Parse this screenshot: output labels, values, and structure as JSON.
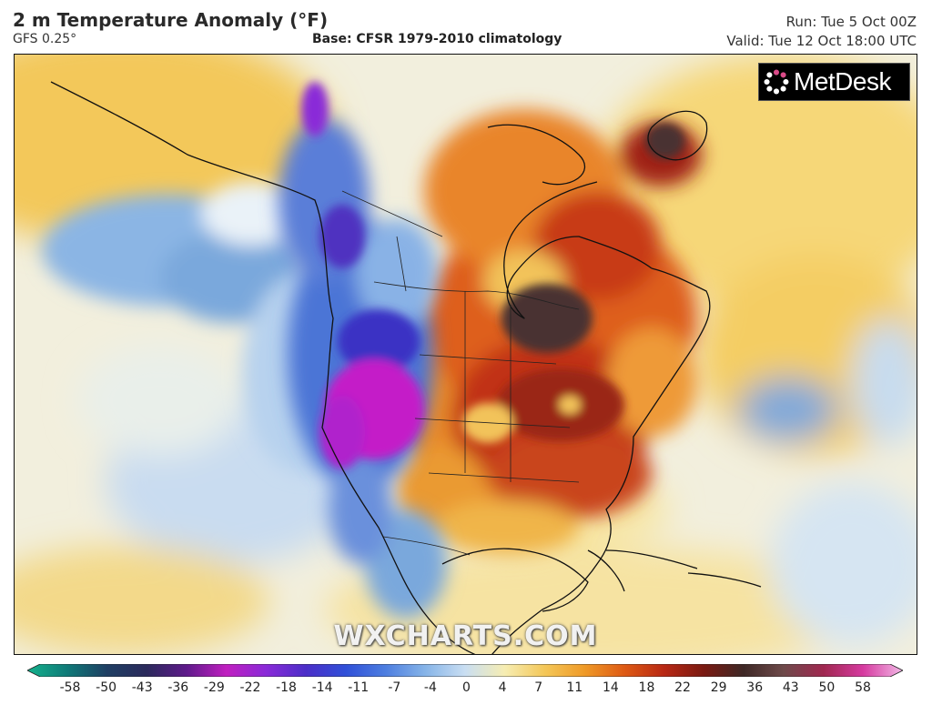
{
  "header": {
    "title": "2 m Temperature Anomaly (°F)",
    "model": "GFS 0.25°",
    "base": "Base: CFSR 1979-2010 climatology",
    "run": "Run: Tue 5 Oct 00Z",
    "valid": "Valid: Tue 12 Oct 18:00 UTC"
  },
  "logo": {
    "text": "MetDesk",
    "icon": "metdesk-logo-icon"
  },
  "watermark": "WXCHARTS.COM",
  "legend": {
    "unit": "°F",
    "labels": [
      "-58",
      "-50",
      "-43",
      "-36",
      "-29",
      "-22",
      "-18",
      "-14",
      "-11",
      "-7",
      "-4",
      "0",
      "4",
      "7",
      "11",
      "14",
      "18",
      "22",
      "29",
      "36",
      "43",
      "50",
      "58"
    ],
    "colors": [
      "#14b28c",
      "#0f7a78",
      "#1f3f63",
      "#2b2a5c",
      "#5e1a8a",
      "#c01fc0",
      "#8a2ad8",
      "#4b2ec8",
      "#3050d8",
      "#4d7ee0",
      "#86b4e8",
      "#c9def2",
      "#f6edb2",
      "#f4c758",
      "#ef9a27",
      "#de5a14",
      "#b82814",
      "#7a1a12",
      "#3e2826",
      "#6e4a4a",
      "#a02850",
      "#d63aa0",
      "#f2b8e6"
    ]
  },
  "map": {
    "region": "North America",
    "colors": {
      "neutral": "#f2efdd",
      "warm_light": "#f6dc84",
      "warm": "#eea53a",
      "hot": "#de5f1a",
      "very_hot": "#a8220f",
      "extreme": "#4a3230",
      "cool_light": "#c6dcf0",
      "cool": "#7aa8dc",
      "cold": "#3b5fd0",
      "very_cold": "#5a2ec4",
      "extreme_cold": "#c41ec8",
      "border_line": "#111111"
    }
  }
}
